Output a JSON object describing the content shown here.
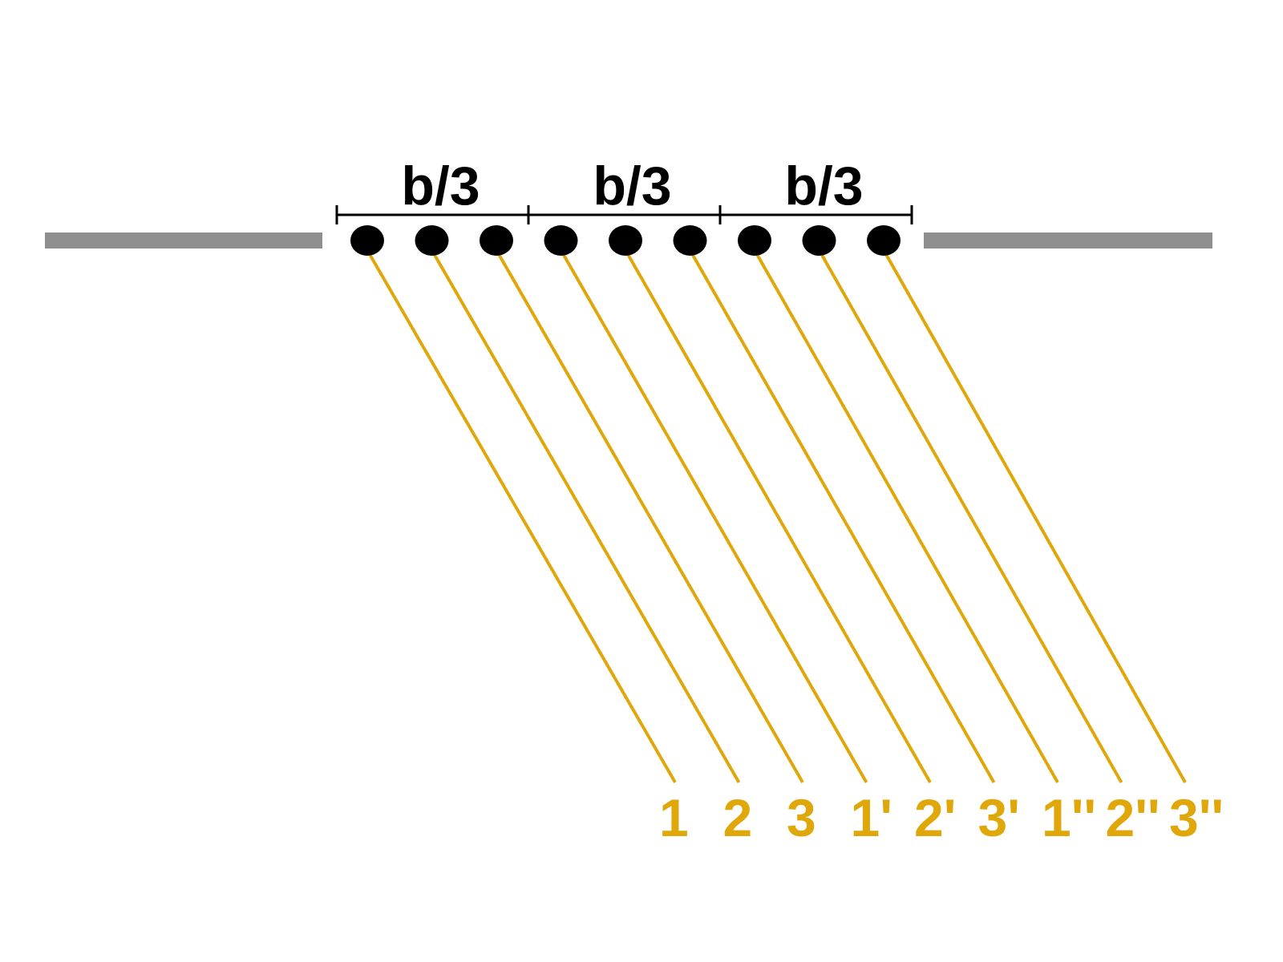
{
  "colors": {
    "background": "#ffffff",
    "slit_wall": "#8f8f8f",
    "dimension_line": "#000000",
    "source_point": "#000000",
    "ray": "#e0a70b",
    "ray_label": "#e0a70b"
  },
  "segments": [
    {
      "label": "b/3"
    },
    {
      "label": "b/3"
    },
    {
      "label": "b/3"
    }
  ],
  "sources": [
    {
      "label": "1"
    },
    {
      "label": "2"
    },
    {
      "label": "3"
    },
    {
      "label": "1'"
    },
    {
      "label": "2'"
    },
    {
      "label": "3'"
    },
    {
      "label": "1''"
    },
    {
      "label": "2''"
    },
    {
      "label": "3''"
    }
  ]
}
